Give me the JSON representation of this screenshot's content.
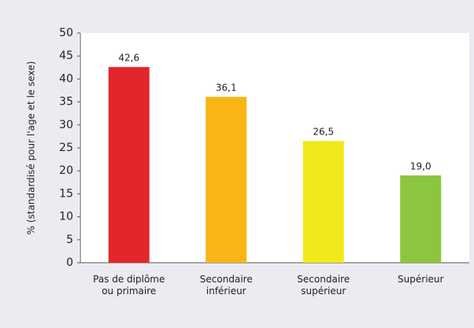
{
  "chart_data": {
    "type": "bar",
    "y_label": "% (standardisé pour l'age et le sexe)",
    "categories": [
      "Pas de diplôme\nou primaire",
      "Secondaire\ninférieur",
      "Secondaire\nsupérieur",
      "Supérieur"
    ],
    "values": [
      42.6,
      36.1,
      26.5,
      19.0
    ],
    "value_labels": [
      "42,6",
      "36,1",
      "26,5",
      "19,0"
    ],
    "colors": [
      "#e2262b",
      "#f8b614",
      "#f3e81b",
      "#8cc63f"
    ],
    "ylim": [
      0,
      50
    ],
    "yticks": [
      0,
      5,
      10,
      15,
      20,
      25,
      30,
      35,
      40,
      45,
      50
    ],
    "grid": false
  }
}
